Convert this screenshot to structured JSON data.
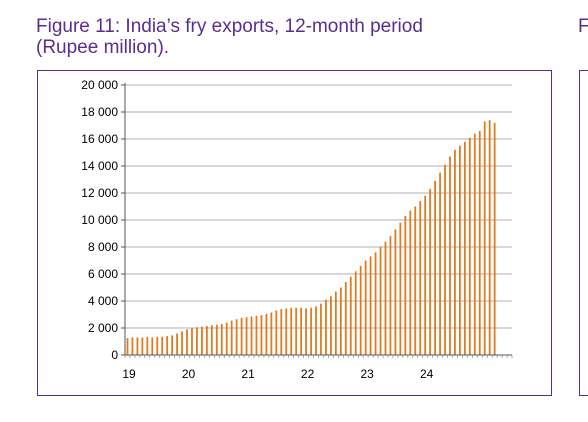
{
  "figure": {
    "title_line1": "Figure 11: India’s fry exports, 12-month period",
    "title_line2": "(Rupee million).",
    "next_title_fragment": "F"
  },
  "colors": {
    "title": "#5b2d90",
    "bar": "#e07b1f",
    "grid": "#b0b0b0",
    "frame": "#5b2d90"
  },
  "chart_data": {
    "type": "bar",
    "title": "Figure 11: India’s fry exports, 12-month period (Rupee million).",
    "xlabel": "",
    "ylabel": "",
    "ylim": [
      0,
      20000
    ],
    "yticks": [
      0,
      2000,
      4000,
      6000,
      8000,
      10000,
      12000,
      14000,
      16000,
      18000,
      20000
    ],
    "ytick_labels": [
      "0",
      "2 000",
      "4 000",
      "6 000",
      "8 000",
      "10 000",
      "12 000",
      "14 000",
      "16 000",
      "18 000",
      "20 000"
    ],
    "xtick_labels": [
      "19",
      "20",
      "21",
      "22",
      "23",
      "24"
    ],
    "bars_per_year": 12,
    "grid": true,
    "legend": "none",
    "values": [
      1250,
      1300,
      1300,
      1300,
      1350,
      1300,
      1350,
      1350,
      1400,
      1450,
      1600,
      1750,
      1900,
      2000,
      2050,
      2100,
      2150,
      2200,
      2250,
      2300,
      2400,
      2550,
      2650,
      2750,
      2800,
      2850,
      2900,
      2950,
      3050,
      3150,
      3300,
      3400,
      3450,
      3500,
      3500,
      3500,
      3450,
      3500,
      3600,
      3800,
      4100,
      4350,
      4700,
      5000,
      5400,
      5800,
      6200,
      6600,
      7000,
      7300,
      7600,
      8000,
      8400,
      8800,
      9300,
      9800,
      10300,
      10700,
      11000,
      11400,
      11800,
      12300,
      12900,
      13500,
      14100,
      14700,
      15200,
      15500,
      15800,
      16100,
      16400,
      16600,
      17300,
      17400,
      17200
    ]
  }
}
